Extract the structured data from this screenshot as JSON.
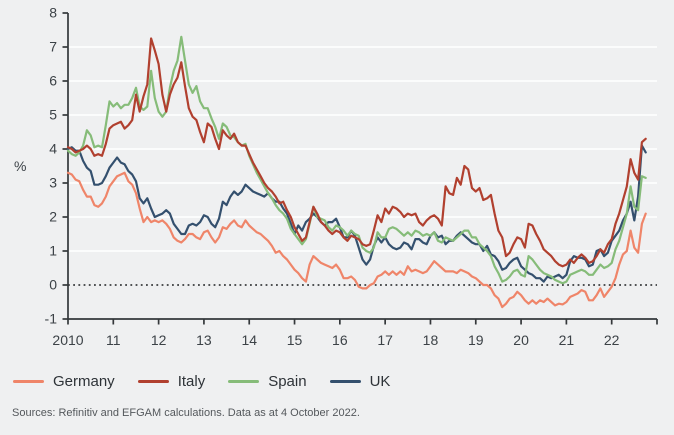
{
  "ylabel_unit": "%",
  "footer": {
    "source": "Sources: Refinitiv and EFGAM calculations. Data as at 4 October 2022."
  },
  "chart_data": {
    "type": "line",
    "title": "",
    "xlabel": "",
    "ylabel": "%",
    "legend_position": "bottom",
    "grid": "horizontal-white",
    "xlim": [
      2010,
      2023
    ],
    "ylim": [
      -1,
      8
    ],
    "y_ticks": [
      -1,
      0,
      1,
      2,
      3,
      4,
      5,
      6,
      7,
      8
    ],
    "grid_y_values": [
      1,
      2,
      3,
      4,
      5,
      6,
      7
    ],
    "zero_line_value": 0,
    "x_ticks": [
      {
        "t": 2010,
        "label": "2010"
      },
      {
        "t": 2011,
        "label": "11"
      },
      {
        "t": 2012,
        "label": "12"
      },
      {
        "t": 2013,
        "label": "13"
      },
      {
        "t": 2014,
        "label": "14"
      },
      {
        "t": 2015,
        "label": "15"
      },
      {
        "t": 2016,
        "label": "16"
      },
      {
        "t": 2017,
        "label": "17"
      },
      {
        "t": 2018,
        "label": "18"
      },
      {
        "t": 2019,
        "label": "19"
      },
      {
        "t": 2020,
        "label": "20"
      },
      {
        "t": 2021,
        "label": "21"
      },
      {
        "t": 2022,
        "label": "22"
      }
    ],
    "x_start": 2010.0,
    "x_step": 0.0833333,
    "draw_order": [
      0,
      3,
      2,
      1
    ],
    "series": [
      {
        "name": "Germany",
        "color": "#ef8569",
        "values": [
          3.3,
          3.25,
          3.1,
          3.05,
          2.8,
          2.6,
          2.6,
          2.35,
          2.3,
          2.4,
          2.6,
          2.9,
          3.05,
          3.2,
          3.25,
          3.3,
          3.05,
          2.95,
          2.7,
          2.25,
          1.85,
          2.0,
          1.85,
          1.9,
          1.85,
          1.9,
          1.8,
          1.65,
          1.4,
          1.3,
          1.25,
          1.35,
          1.5,
          1.5,
          1.4,
          1.35,
          1.55,
          1.6,
          1.4,
          1.25,
          1.4,
          1.7,
          1.65,
          1.8,
          1.9,
          1.75,
          1.7,
          1.9,
          1.75,
          1.65,
          1.55,
          1.5,
          1.4,
          1.3,
          1.15,
          0.95,
          1.0,
          0.85,
          0.75,
          0.6,
          0.45,
          0.35,
          0.2,
          0.1,
          0.6,
          0.85,
          0.75,
          0.65,
          0.6,
          0.55,
          0.5,
          0.6,
          0.45,
          0.2,
          0.2,
          0.25,
          0.15,
          -0.05,
          -0.1,
          -0.1,
          0.0,
          0.05,
          0.25,
          0.3,
          0.4,
          0.3,
          0.4,
          0.3,
          0.4,
          0.3,
          0.55,
          0.4,
          0.45,
          0.4,
          0.35,
          0.4,
          0.55,
          0.7,
          0.6,
          0.5,
          0.4,
          0.4,
          0.4,
          0.35,
          0.45,
          0.4,
          0.35,
          0.25,
          0.2,
          0.1,
          0.0,
          0.0,
          -0.1,
          -0.3,
          -0.4,
          -0.65,
          -0.55,
          -0.4,
          -0.35,
          -0.2,
          -0.3,
          -0.45,
          -0.55,
          -0.45,
          -0.55,
          -0.45,
          -0.5,
          -0.4,
          -0.5,
          -0.6,
          -0.55,
          -0.57,
          -0.5,
          -0.35,
          -0.3,
          -0.25,
          -0.15,
          -0.2,
          -0.45,
          -0.45,
          -0.3,
          -0.1,
          -0.35,
          -0.2,
          -0.05,
          0.2,
          0.6,
          0.9,
          1.0,
          1.6,
          1.1,
          0.95,
          1.8,
          2.1
        ]
      },
      {
        "name": "Italy",
        "color": "#b1402f",
        "values": [
          4.05,
          4.0,
          3.9,
          3.95,
          4.0,
          4.1,
          4.0,
          3.8,
          3.85,
          3.8,
          4.15,
          4.6,
          4.7,
          4.75,
          4.8,
          4.6,
          4.7,
          4.85,
          5.6,
          5.1,
          5.55,
          5.9,
          7.25,
          6.9,
          6.5,
          5.6,
          5.1,
          5.6,
          5.9,
          6.1,
          6.55,
          5.85,
          5.2,
          4.95,
          4.85,
          4.5,
          4.2,
          4.75,
          4.65,
          4.3,
          4.0,
          4.55,
          4.4,
          4.3,
          4.45,
          4.2,
          4.1,
          4.1,
          3.85,
          3.6,
          3.4,
          3.2,
          3.0,
          2.85,
          2.75,
          2.6,
          2.4,
          2.45,
          2.2,
          2.0,
          1.7,
          1.5,
          1.3,
          1.4,
          1.85,
          2.3,
          2.1,
          1.85,
          1.75,
          1.6,
          1.5,
          1.6,
          1.55,
          1.4,
          1.3,
          1.45,
          1.4,
          1.35,
          1.2,
          1.15,
          1.2,
          1.6,
          2.05,
          1.85,
          2.25,
          2.1,
          2.3,
          2.25,
          2.15,
          2.0,
          2.1,
          2.05,
          2.1,
          1.85,
          1.75,
          1.9,
          2.0,
          2.05,
          1.95,
          1.75,
          2.9,
          2.7,
          2.65,
          3.15,
          2.95,
          3.5,
          3.4,
          2.85,
          2.75,
          2.85,
          2.5,
          2.55,
          2.65,
          2.1,
          1.6,
          1.4,
          0.85,
          0.95,
          1.2,
          1.4,
          1.35,
          1.1,
          1.8,
          1.75,
          1.5,
          1.3,
          1.05,
          0.95,
          0.85,
          0.7,
          0.6,
          0.55,
          0.6,
          0.75,
          0.65,
          0.8,
          0.9,
          0.8,
          0.65,
          0.7,
          0.85,
          1.05,
          0.95,
          1.2,
          1.35,
          1.8,
          2.1,
          2.5,
          2.9,
          3.7,
          3.3,
          3.1,
          4.2,
          4.3
        ]
      },
      {
        "name": "Spain",
        "color": "#86bc79",
        "values": [
          3.95,
          3.85,
          3.8,
          3.9,
          4.1,
          4.55,
          4.4,
          4.05,
          4.1,
          4.05,
          4.7,
          5.4,
          5.25,
          5.35,
          5.2,
          5.3,
          5.3,
          5.5,
          5.8,
          5.25,
          5.15,
          5.25,
          6.3,
          5.5,
          5.1,
          4.95,
          5.1,
          5.8,
          6.3,
          6.6,
          7.3,
          6.6,
          5.9,
          5.65,
          5.85,
          5.4,
          5.2,
          5.2,
          4.9,
          4.65,
          4.3,
          4.75,
          4.65,
          4.4,
          4.35,
          4.2,
          4.1,
          4.15,
          3.8,
          3.55,
          3.3,
          3.1,
          2.9,
          2.7,
          2.55,
          2.35,
          2.2,
          2.1,
          1.95,
          1.65,
          1.5,
          1.35,
          1.2,
          1.35,
          1.8,
          2.3,
          2.0,
          1.95,
          1.9,
          1.7,
          1.6,
          1.75,
          1.7,
          1.6,
          1.45,
          1.6,
          1.5,
          1.45,
          1.1,
          1.0,
          0.95,
          1.1,
          1.55,
          1.4,
          1.4,
          1.65,
          1.7,
          1.65,
          1.55,
          1.45,
          1.55,
          1.45,
          1.6,
          1.55,
          1.45,
          1.5,
          1.45,
          1.55,
          1.3,
          1.25,
          1.4,
          1.35,
          1.3,
          1.4,
          1.5,
          1.6,
          1.6,
          1.4,
          1.4,
          1.2,
          1.1,
          1.0,
          0.85,
          0.55,
          0.35,
          0.1,
          0.15,
          0.25,
          0.4,
          0.45,
          0.3,
          0.25,
          0.85,
          0.75,
          0.6,
          0.45,
          0.35,
          0.3,
          0.25,
          0.15,
          0.1,
          0.05,
          0.1,
          0.3,
          0.35,
          0.4,
          0.45,
          0.4,
          0.3,
          0.3,
          0.45,
          0.6,
          0.5,
          0.55,
          0.65,
          1.05,
          1.3,
          1.7,
          2.1,
          2.9,
          2.3,
          2.2,
          3.2,
          3.15
        ]
      },
      {
        "name": "UK",
        "color": "#34506e",
        "values": [
          4.0,
          4.05,
          3.95,
          3.95,
          3.65,
          3.45,
          3.35,
          2.95,
          2.95,
          3.0,
          3.2,
          3.45,
          3.6,
          3.75,
          3.6,
          3.55,
          3.35,
          3.25,
          3.05,
          2.55,
          2.4,
          2.55,
          2.25,
          2.0,
          2.05,
          2.1,
          2.2,
          2.1,
          1.8,
          1.65,
          1.5,
          1.5,
          1.75,
          1.8,
          1.75,
          1.85,
          2.05,
          2.0,
          1.8,
          1.7,
          1.95,
          2.45,
          2.35,
          2.6,
          2.75,
          2.65,
          2.75,
          2.95,
          2.85,
          2.75,
          2.7,
          2.65,
          2.6,
          2.7,
          2.55,
          2.45,
          2.45,
          2.25,
          2.1,
          1.8,
          1.5,
          1.75,
          1.6,
          1.85,
          1.95,
          2.1,
          2.0,
          1.85,
          1.75,
          1.85,
          1.85,
          1.95,
          1.7,
          1.4,
          1.4,
          1.6,
          1.45,
          1.1,
          0.75,
          0.6,
          0.75,
          1.15,
          1.4,
          1.25,
          1.4,
          1.2,
          1.1,
          1.05,
          1.1,
          1.25,
          1.2,
          1.05,
          1.35,
          1.35,
          1.25,
          1.2,
          1.45,
          1.55,
          1.4,
          1.45,
          1.2,
          1.3,
          1.3,
          1.45,
          1.55,
          1.45,
          1.35,
          1.25,
          1.2,
          1.2,
          1.0,
          1.15,
          0.9,
          0.85,
          0.7,
          0.45,
          0.5,
          0.65,
          0.75,
          0.8,
          0.55,
          0.45,
          0.35,
          0.3,
          0.2,
          0.2,
          0.1,
          0.25,
          0.2,
          0.25,
          0.3,
          0.2,
          0.3,
          0.7,
          0.85,
          0.8,
          0.8,
          0.75,
          0.55,
          0.6,
          1.0,
          1.05,
          0.85,
          0.95,
          1.3,
          1.45,
          1.6,
          1.9,
          2.1,
          2.45,
          1.9,
          2.6,
          4.1,
          3.9
        ]
      }
    ],
    "style": {
      "background": "#eff0f1",
      "grid_color": "#ffffff",
      "axis_color": "#34383b",
      "tick_label_color": "#3c4247",
      "zero_line_color": "#1c1e20",
      "line_width": 2.2
    }
  }
}
